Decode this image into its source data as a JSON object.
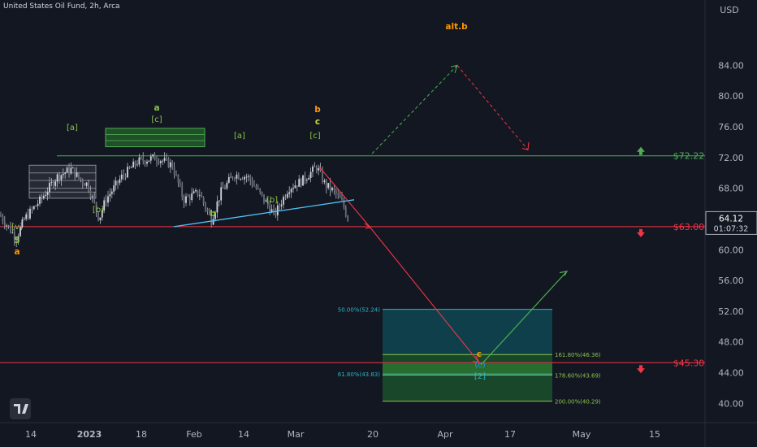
{
  "title": "United States Oil Fund, 2h, Arca",
  "chart_data": {
    "type": "candlestick",
    "currency": "USD",
    "ylim": [
      37.5,
      92.5
    ],
    "y_ticks": [
      84.0,
      80.0,
      76.0,
      72.0,
      68.0,
      64.0,
      60.0,
      56.0,
      52.0,
      48.0,
      44.0,
      40.0
    ],
    "x_ticks": [
      "14",
      "2023",
      "18",
      "Feb",
      "14",
      "Mar",
      "20",
      "Apr",
      "17",
      "May",
      "15"
    ],
    "current_price": "64.12",
    "countdown": "01:07:32",
    "levels": [
      {
        "label": "$72.22",
        "value": 72.22,
        "color": "#4caf50",
        "arrow": "up"
      },
      {
        "label": "$63.00",
        "value": 63.0,
        "color": "#f23645",
        "arrow": "down"
      },
      {
        "label": "$45.30",
        "value": 45.3,
        "color": "#f23645",
        "arrow": "down"
      }
    ],
    "fib_labels": [
      {
        "text": "50.00%(52.24)",
        "value": 52.24,
        "color": "#2fb5c5"
      },
      {
        "text": "61.80%(43.83)",
        "value": 43.83,
        "color": "#2fb5c5"
      },
      {
        "text": "161.80%(46.36)",
        "value": 46.36,
        "color": "#8bc34a"
      },
      {
        "text": "178.60%(43.69)",
        "value": 43.69,
        "color": "#8bc34a"
      },
      {
        "text": "200.00%(40.29)",
        "value": 40.29,
        "color": "#8bc34a"
      }
    ],
    "wave_labels": [
      {
        "text": "[v]",
        "color": "#8bc34a"
      },
      {
        "text": "5",
        "color": "#8bc34a"
      },
      {
        "text": "a",
        "color": "#ff9800"
      },
      {
        "text": "[a]",
        "color": "#8bc34a"
      },
      {
        "text": "[b]",
        "color": "#8bc34a"
      },
      {
        "text": "a",
        "color": "#8bc34a"
      },
      {
        "text": "[c]",
        "color": "#8bc34a"
      },
      {
        "text": "b",
        "color": "#8bc34a"
      },
      {
        "text": "[a]",
        "color": "#8bc34a"
      },
      {
        "text": "[b]",
        "color": "#8bc34a"
      },
      {
        "text": "b",
        "color": "#ff9800"
      },
      {
        "text": "c",
        "color": "#cddc39"
      },
      {
        "text": "[c]",
        "color": "#8bc34a"
      },
      {
        "text": "alt.b",
        "color": "#ff9800"
      },
      {
        "text": "c",
        "color": "#ff9800"
      },
      {
        "text": "(c)",
        "color": "#2196f3"
      },
      {
        "text": "[2]",
        "color": "#2fb5c5"
      }
    ]
  }
}
